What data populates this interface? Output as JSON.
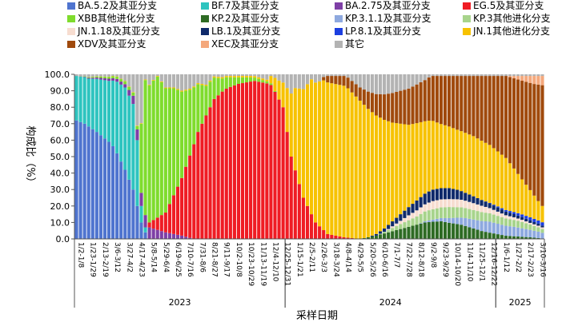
{
  "chart_data": {
    "type": "bar",
    "stacked": true,
    "ylabel": "构成比（%）",
    "xlabel": "采样日期",
    "ylim": [
      0,
      100
    ],
    "yticks": [
      "0.0",
      "10.0",
      "20.0",
      "30.0",
      "40.0",
      "50.0",
      "60.0",
      "70.0",
      "80.0",
      "90.0",
      "100.0"
    ],
    "xticks": [
      "1/2-1/8",
      "1/23-1/29",
      "2/13-2/19",
      "3/6-3/12",
      "3/27-4/2",
      "4/17-4/23",
      "5/8-5/14",
      "5/29-6/4",
      "6/19-6/25",
      "7/10-7/16",
      "7/31-8/6",
      "8/21-8/27",
      "9/11-9/17",
      "10/2-10/8",
      "10/23-10/29",
      "11/13-11/19",
      "12/4-12/10",
      "12/25-12/31",
      "1/15-1/21",
      "2/5-2/11",
      "2/26-3/3",
      "3/18-3/24",
      "4/8-4/14",
      "4/29-5/5",
      "5/20-5/26",
      "6/10-6/16",
      "7/1-7/7",
      "7/22-7/28",
      "8/12-8/18",
      "9/2-9/8",
      "9/23-9/29",
      "10/14-10/20",
      "11/4-11/10",
      "11/25-12/1",
      "12/16-12/22",
      "1/6-1/12",
      "1/27-2/2",
      "2/17-2/23",
      "3/10-3/16"
    ],
    "years": [
      {
        "label": "2023",
        "from_week": 0,
        "to_week": 52
      },
      {
        "label": "2024",
        "from_week": 52,
        "to_week": 104
      },
      {
        "label": "2025",
        "from_week": 104,
        "to_week": 116
      }
    ],
    "legend_position": "top",
    "num_weeks": 116,
    "series": [
      {
        "name": "BA.5.2及其亚分支",
        "color": "#4f74cf",
        "keys": [
          [
            0,
            72
          ],
          [
            2,
            70
          ],
          [
            5,
            65
          ],
          [
            9,
            57
          ],
          [
            12,
            42
          ],
          [
            14,
            30
          ],
          [
            16,
            10
          ],
          [
            17,
            4
          ],
          [
            18,
            0
          ],
          [
            116,
            0
          ]
        ]
      },
      {
        "name": "BF.7及其亚分支",
        "color": "#2ec4bf",
        "keys": [
          [
            0,
            27
          ],
          [
            3,
            29
          ],
          [
            8,
            37
          ],
          [
            12,
            50
          ],
          [
            14,
            52
          ],
          [
            15,
            40
          ],
          [
            16,
            10
          ],
          [
            17,
            3
          ],
          [
            18,
            0
          ],
          [
            116,
            0
          ]
        ]
      },
      {
        "name": "BA.2.75及其亚分支",
        "color": "#7e3fa6",
        "keys": [
          [
            0,
            0
          ],
          [
            12,
            2
          ],
          [
            16,
            8
          ],
          [
            18,
            7
          ],
          [
            22,
            4
          ],
          [
            26,
            2
          ],
          [
            29,
            0
          ],
          [
            116,
            0
          ]
        ]
      },
      {
        "name": "EG.5及其亚分支",
        "color": "#ef1c24",
        "keys": [
          [
            0,
            0
          ],
          [
            17,
            0
          ],
          [
            18,
            3
          ],
          [
            22,
            12
          ],
          [
            26,
            35
          ],
          [
            30,
            65
          ],
          [
            34,
            85
          ],
          [
            38,
            94
          ],
          [
            44,
            96
          ],
          [
            48,
            94
          ],
          [
            51,
            80
          ],
          [
            53,
            50
          ],
          [
            56,
            25
          ],
          [
            59,
            10
          ],
          [
            62,
            3
          ],
          [
            66,
            1
          ],
          [
            70,
            0
          ],
          [
            116,
            0
          ]
        ]
      },
      {
        "name": "XBB其他进化分支",
        "color": "#7fdc2d",
        "keys": [
          [
            0,
            0
          ],
          [
            15,
            2
          ],
          [
            17,
            82
          ],
          [
            20,
            86
          ],
          [
            24,
            65
          ],
          [
            28,
            40
          ],
          [
            32,
            18
          ],
          [
            36,
            8
          ],
          [
            40,
            4
          ],
          [
            44,
            2
          ],
          [
            48,
            1
          ],
          [
            50,
            0
          ],
          [
            116,
            0
          ]
        ]
      },
      {
        "name": "KP.2及其亚分支",
        "color": "#2e6b24",
        "keys": [
          [
            0,
            0
          ],
          [
            70,
            0
          ],
          [
            74,
            2
          ],
          [
            80,
            6
          ],
          [
            86,
            10
          ],
          [
            90,
            11
          ],
          [
            95,
            9
          ],
          [
            100,
            5
          ],
          [
            106,
            2
          ],
          [
            112,
            1
          ],
          [
            116,
            0
          ]
        ]
      },
      {
        "name": "KP.3.1.1及其亚分支",
        "color": "#8ea9df",
        "keys": [
          [
            0,
            0
          ],
          [
            84,
            0
          ],
          [
            90,
            2
          ],
          [
            96,
            5
          ],
          [
            102,
            7
          ],
          [
            108,
            6
          ],
          [
            114,
            4
          ],
          [
            116,
            3
          ]
        ]
      },
      {
        "name": "KP.3其他进化分支",
        "color": "#a8d48c",
        "keys": [
          [
            0,
            0
          ],
          [
            74,
            0
          ],
          [
            80,
            3
          ],
          [
            86,
            6
          ],
          [
            92,
            7
          ],
          [
            98,
            6
          ],
          [
            104,
            5
          ],
          [
            110,
            4
          ],
          [
            116,
            2
          ]
        ]
      },
      {
        "name": "JN.1.18及其亚分支",
        "color": "#f7ddd0",
        "keys": [
          [
            0,
            0
          ],
          [
            76,
            0
          ],
          [
            82,
            3
          ],
          [
            88,
            5
          ],
          [
            94,
            5
          ],
          [
            100,
            4
          ],
          [
            106,
            2
          ],
          [
            112,
            1
          ],
          [
            116,
            1
          ]
        ]
      },
      {
        "name": "LB.1及其亚分支",
        "color": "#0f2a6b",
        "keys": [
          [
            0,
            0
          ],
          [
            72,
            0
          ],
          [
            78,
            3
          ],
          [
            84,
            6
          ],
          [
            88,
            7
          ],
          [
            92,
            7
          ],
          [
            96,
            5
          ],
          [
            102,
            3
          ],
          [
            108,
            2
          ],
          [
            116,
            1
          ]
        ]
      },
      {
        "name": "LP.8.1及其亚分支",
        "color": "#1c3fe0",
        "keys": [
          [
            0,
            0
          ],
          [
            100,
            0
          ],
          [
            106,
            1
          ],
          [
            112,
            2
          ],
          [
            116,
            2
          ]
        ]
      },
      {
        "name": "JN.1其他进化分支",
        "color": "#f7c200",
        "keys": [
          [
            0,
            0
          ],
          [
            47,
            1
          ],
          [
            51,
            15
          ],
          [
            54,
            50
          ],
          [
            58,
            82
          ],
          [
            62,
            94
          ],
          [
            66,
            93
          ],
          [
            70,
            84
          ],
          [
            74,
            72
          ],
          [
            78,
            60
          ],
          [
            82,
            50
          ],
          [
            86,
            44
          ],
          [
            90,
            40
          ],
          [
            94,
            38
          ],
          [
            98,
            38
          ],
          [
            102,
            37
          ],
          [
            106,
            33
          ],
          [
            110,
            22
          ],
          [
            114,
            12
          ],
          [
            116,
            8
          ]
        ]
      },
      {
        "name": "XDV及其亚分支",
        "color": "#a04a0d",
        "keys": [
          [
            0,
            0
          ],
          [
            60,
            0
          ],
          [
            62,
            4
          ],
          [
            66,
            6
          ],
          [
            70,
            8
          ],
          [
            74,
            13
          ],
          [
            78,
            18
          ],
          [
            82,
            22
          ],
          [
            86,
            25
          ],
          [
            90,
            30
          ],
          [
            94,
            34
          ],
          [
            98,
            38
          ],
          [
            102,
            44
          ],
          [
            106,
            52
          ],
          [
            110,
            62
          ],
          [
            114,
            72
          ],
          [
            116,
            76
          ]
        ]
      },
      {
        "name": "XEC及其亚分支",
        "color": "#f4a87c",
        "keys": [
          [
            0,
            0
          ],
          [
            106,
            0
          ],
          [
            110,
            3
          ],
          [
            113,
            5
          ],
          [
            116,
            6
          ]
        ]
      },
      {
        "name": "其它",
        "color": "#b3b3b3",
        "fill_rest": true
      }
    ]
  }
}
